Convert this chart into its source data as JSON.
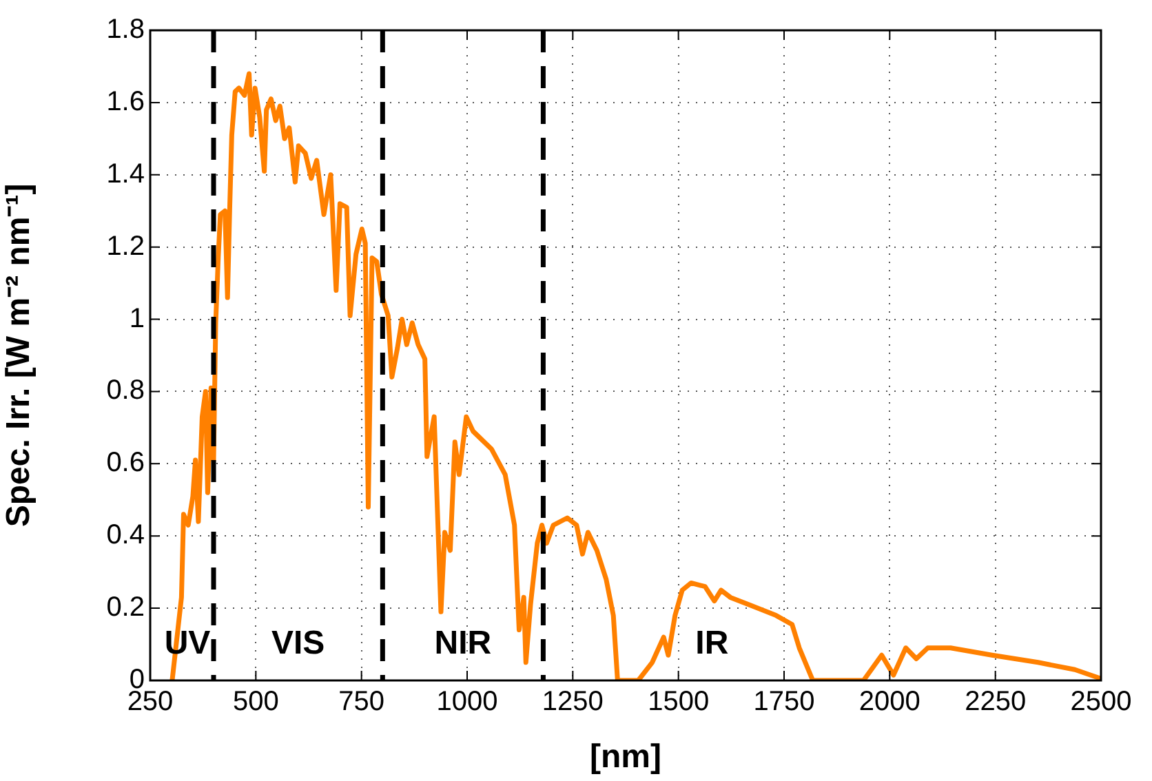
{
  "chart_data": {
    "type": "line",
    "xlabel": "[nm]",
    "ylabel": "Spec. Irr. [W m⁻² nm⁻¹]",
    "x": [
      302,
      324,
      329,
      340,
      351,
      357,
      364,
      373,
      381,
      386,
      394,
      400,
      405,
      411,
      416,
      427,
      433,
      438,
      443,
      451,
      460,
      473,
      484,
      490,
      498,
      509,
      520,
      525,
      536,
      547,
      557,
      568,
      579,
      593,
      601,
      617,
      631,
      644,
      661,
      677,
      690,
      699,
      715,
      723,
      737,
      751,
      759,
      766,
      775,
      786,
      797,
      813,
      822,
      835,
      846,
      857,
      870,
      884,
      900,
      905,
      922,
      938,
      947,
      960,
      971,
      981,
      998,
      1014,
      1058,
      1090,
      1112,
      1123,
      1134,
      1139,
      1150,
      1166,
      1177,
      1188,
      1204,
      1237,
      1259,
      1273,
      1286,
      1307,
      1329,
      1346,
      1356,
      1405,
      1438,
      1465,
      1476,
      1492,
      1509,
      1530,
      1563,
      1585,
      1601,
      1623,
      1666,
      1731,
      1769,
      1786,
      1818,
      1938,
      1981,
      2009,
      2038,
      2063,
      2090,
      2144,
      2242,
      2351,
      2438,
      2500
    ],
    "series": [
      {
        "color": "#ff8000",
        "values": [
          0,
          0.23,
          0.46,
          0.43,
          0.51,
          0.61,
          0.44,
          0.73,
          0.8,
          0.52,
          0.81,
          0.61,
          0.99,
          1.17,
          1.29,
          1.3,
          1.06,
          1.3,
          1.51,
          1.63,
          1.64,
          1.62,
          1.68,
          1.51,
          1.64,
          1.56,
          1.41,
          1.58,
          1.61,
          1.55,
          1.59,
          1.5,
          1.53,
          1.38,
          1.48,
          1.46,
          1.39,
          1.44,
          1.29,
          1.4,
          1.08,
          1.32,
          1.31,
          1.01,
          1.18,
          1.25,
          1.21,
          0.48,
          1.17,
          1.16,
          1.07,
          1.01,
          0.84,
          0.92,
          1,
          0.93,
          0.99,
          0.93,
          0.89,
          0.62,
          0.73,
          0.19,
          0.41,
          0.36,
          0.66,
          0.57,
          0.73,
          0.69,
          0.64,
          0.57,
          0.43,
          0.14,
          0.23,
          0.05,
          0.21,
          0.38,
          0.43,
          0.38,
          0.43,
          0.45,
          0.43,
          0.35,
          0.41,
          0.36,
          0.28,
          0.18,
          0,
          0,
          0.05,
          0.12,
          0.07,
          0.18,
          0.25,
          0.27,
          0.26,
          0.22,
          0.25,
          0.23,
          0.21,
          0.18,
          0.155,
          0.09,
          0,
          0,
          0.07,
          0.015,
          0.09,
          0.06,
          0.09,
          0.09,
          0.07,
          0.05,
          0.03,
          0.005
        ]
      }
    ],
    "xlim": [
      250,
      2500
    ],
    "xticks": [
      250,
      500,
      750,
      1000,
      1250,
      1500,
      1750,
      2000,
      2250,
      2500
    ],
    "ylim": [
      0,
      1.8
    ],
    "yticks": [
      0,
      0.2,
      0.4,
      0.6,
      0.8,
      1,
      1.2,
      1.4,
      1.6,
      1.8
    ],
    "grid": true,
    "legend": false,
    "marker": "none",
    "line_style": "solid",
    "ref_lines": [
      {
        "axis": "x",
        "value": 400,
        "color": "#000000",
        "line_style": "dashed"
      },
      {
        "axis": "x",
        "value": 800,
        "color": "#000000",
        "line_style": "dashed"
      },
      {
        "axis": "x",
        "value": 1180,
        "color": "#000000",
        "line_style": "dashed"
      }
    ],
    "annotations": [
      "UV",
      "VIS",
      "NIR",
      "IR"
    ]
  }
}
